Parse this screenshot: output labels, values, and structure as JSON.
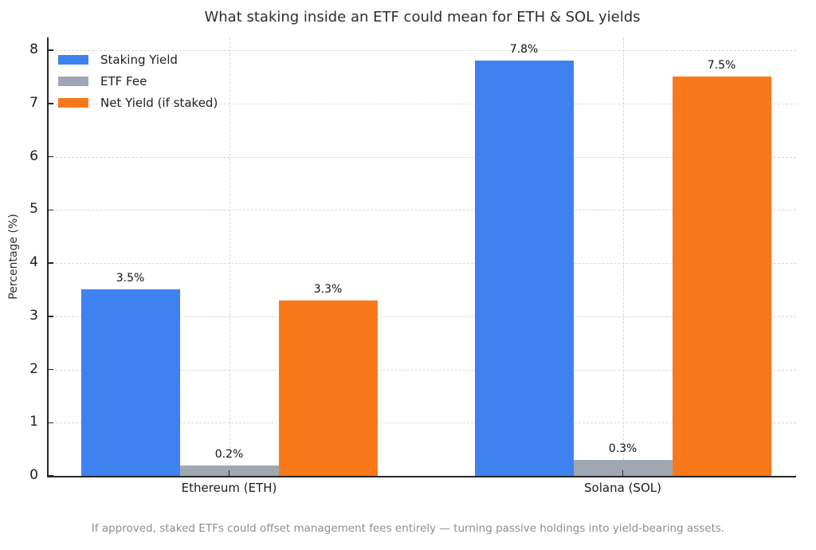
{
  "chart_data": {
    "type": "bar",
    "title": "What staking inside an ETF could mean for ETH & SOL yields",
    "ylabel": "Percentage (%)",
    "xlabel": "",
    "categories": [
      "Ethereum (ETH)",
      "Solana (SOL)"
    ],
    "series": [
      {
        "name": "Staking Yield",
        "color": "#3e82f0",
        "values": [
          3.5,
          7.8
        ],
        "labels": [
          "3.5%",
          "7.8%"
        ]
      },
      {
        "name": "ETF Fee",
        "color": "#9fa8b2",
        "values": [
          0.2,
          0.3
        ],
        "labels": [
          "0.2%",
          "0.3%"
        ]
      },
      {
        "name": "Net Yield (if staked)",
        "color": "#f8791a",
        "values": [
          3.3,
          7.5
        ],
        "labels": [
          "3.3%",
          "7.5%"
        ]
      }
    ],
    "ylim": [
      0,
      8.24
    ],
    "yticks": [
      0,
      1,
      2,
      3,
      4,
      5,
      6,
      7,
      8
    ],
    "grid": true,
    "grid_style": "dashed",
    "legend_position": "upper-left",
    "caption": "If approved, staked ETFs could offset management fees entirely — turning passive holdings into yield-bearing assets.",
    "colors": {
      "staking_yield": "#3e82f0",
      "etf_fee": "#9fa8b2",
      "net_yield": "#f8791a",
      "axis": "#262626",
      "grid": "#d8d8d8",
      "caption_text": "#8e8e8e"
    }
  }
}
